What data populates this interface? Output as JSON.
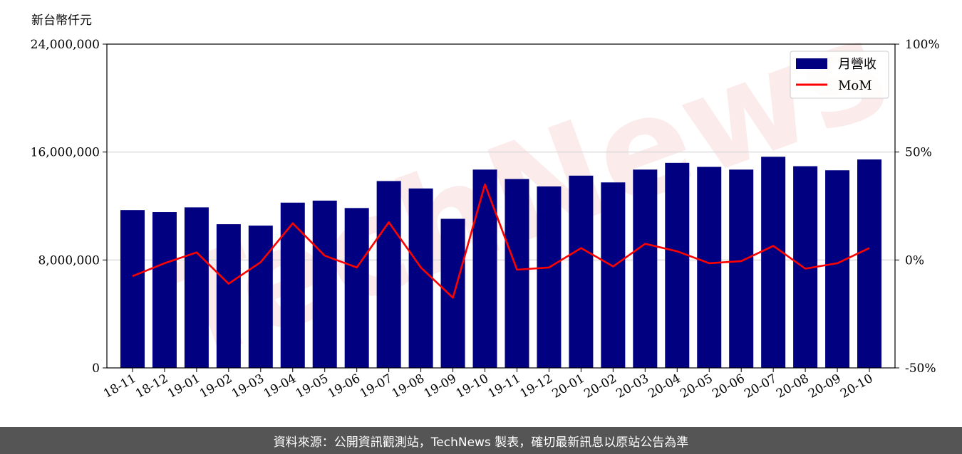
{
  "chart_data": {
    "type": "bar",
    "y_unit_label": "新台幣仟元",
    "categories": [
      "18-11",
      "18-12",
      "19-01",
      "19-02",
      "19-03",
      "19-04",
      "19-05",
      "19-06",
      "19-07",
      "19-08",
      "19-09",
      "19-10",
      "19-11",
      "19-12",
      "20-01",
      "20-02",
      "20-03",
      "20-04",
      "20-05",
      "20-06",
      "20-07",
      "20-08",
      "20-09",
      "20-10"
    ],
    "series": [
      {
        "name": "月營收",
        "type": "bar",
        "axis": "left",
        "color": "#000080",
        "values": [
          11700000,
          11550000,
          11900000,
          10650000,
          10550000,
          12250000,
          12400000,
          11850000,
          13850000,
          13300000,
          11050000,
          14700000,
          14000000,
          13450000,
          14250000,
          13750000,
          14700000,
          15200000,
          14900000,
          14700000,
          15650000,
          14950000,
          14650000,
          15450000
        ]
      },
      {
        "name": "MoM",
        "type": "line",
        "axis": "right",
        "color": "#ff0000",
        "values": [
          -7.5,
          -1.5,
          3.5,
          -11,
          -1,
          17,
          2,
          -3.5,
          17.5,
          -3.5,
          -17.5,
          35,
          -4.5,
          -3.5,
          5.5,
          -3,
          7.5,
          4,
          -1.5,
          -0.5,
          6.5,
          -4,
          -1.5,
          5.5
        ]
      }
    ],
    "y_left": {
      "min": 0,
      "max": 24000000,
      "ticks": [
        "0",
        "8,000,000",
        "16,000,000",
        "24,000,000"
      ]
    },
    "y_right": {
      "min": -50,
      "max": 100,
      "ticks": [
        "-50%",
        "0%",
        "50%",
        "100%"
      ]
    },
    "grid": "horizontal",
    "legend_position": "top-right"
  },
  "watermark": "TechNews",
  "footer": "資料來源：公開資訊觀測站，TechNews 製表，確切最新訊息以原站公告為準"
}
